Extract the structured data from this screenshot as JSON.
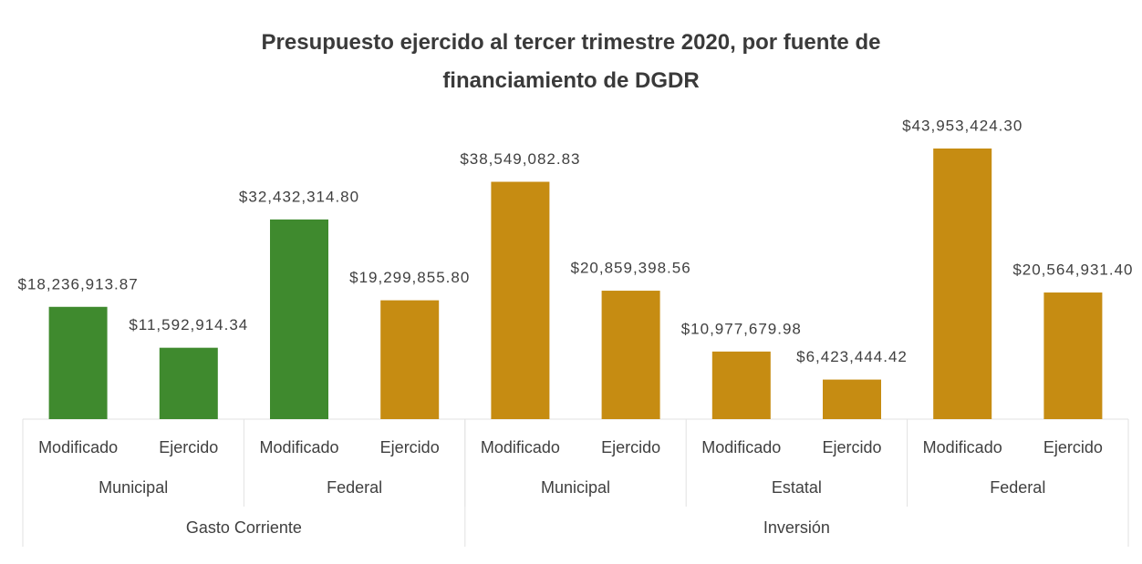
{
  "chart_data": {
    "type": "bar",
    "title": "Presupuesto ejercido al tercer trimestre 2020, por fuente de financiamiento de DGDR",
    "groups": [
      {
        "name": "Gasto Corriente",
        "subgroups": [
          {
            "name": "Municipal",
            "categories": [
              "Modificado",
              "Ejercido"
            ]
          },
          {
            "name": "Federal",
            "categories": [
              "Modificado",
              "Ejercido"
            ]
          }
        ]
      },
      {
        "name": "Inversión",
        "subgroups": [
          {
            "name": "Municipal",
            "categories": [
              "Modificado",
              "Ejercido"
            ]
          },
          {
            "name": "Estatal",
            "categories": [
              "Modificado",
              "Ejercido"
            ]
          },
          {
            "name": "Federal",
            "categories": [
              "Modificado",
              "Ejercido"
            ]
          }
        ]
      }
    ],
    "values": [
      18236913.87,
      11592914.34,
      32432314.8,
      19299855.8,
      38549082.83,
      20859398.56,
      10977679.98,
      6423444.42,
      43953424.3,
      20564931.4
    ],
    "value_labels": [
      "$18,236,913.87",
      "$11,592,914.34",
      "$32,432,314.80",
      "$19,299,855.80",
      "$38,549,082.83",
      "$20,859,398.56",
      "$10,977,679.98",
      "$6,423,444.42",
      "$43,953,424.30",
      "$20,564,931.40"
    ],
    "colors": [
      "#3f8a2e",
      "#3f8a2e",
      "#3f8a2e",
      "#c68c12",
      "#c68c12",
      "#c68c12",
      "#c68c12",
      "#c68c12",
      "#c68c12",
      "#c68c12"
    ]
  }
}
